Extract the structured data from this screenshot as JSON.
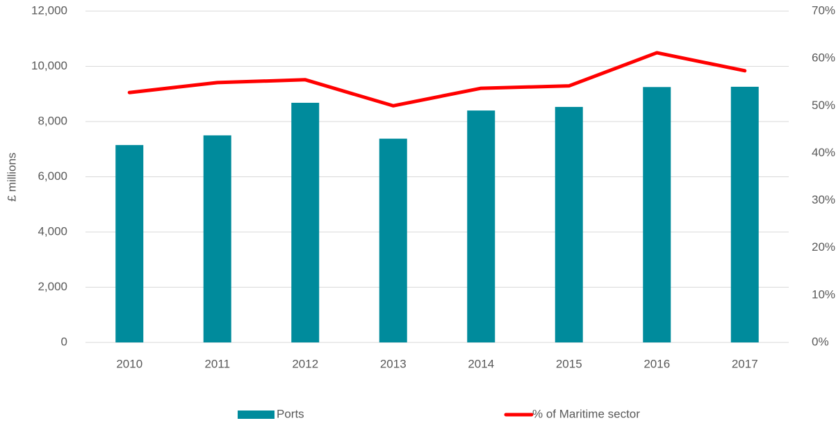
{
  "chart_data": {
    "type": "bar_line",
    "y_label": "£ millions",
    "categories": [
      "2010",
      "2011",
      "2012",
      "2013",
      "2014",
      "2015",
      "2016",
      "2017"
    ],
    "series": [
      {
        "name": "Ports",
        "type": "bar",
        "color": "#008b9c",
        "values": [
          7150,
          7500,
          8680,
          7380,
          8400,
          8530,
          9250,
          9260
        ]
      },
      {
        "name": "% of Maritime sector",
        "type": "line",
        "axis": "y2",
        "color": "#ff0000",
        "values": [
          52.8,
          54.9,
          55.5,
          50.0,
          53.7,
          54.2,
          61.2,
          57.4
        ]
      }
    ],
    "ylim": [
      0,
      12000
    ],
    "yticks": [
      0,
      {
        "value": 2000,
        "label": "2,000"
      },
      {
        "value": 4000,
        "label": "4,000"
      },
      {
        "value": 6000,
        "label": "6,000"
      },
      {
        "value": 8000,
        "label": "8,000"
      },
      {
        "value": 10000,
        "label": "10,000"
      },
      {
        "value": 12000,
        "label": "12,000"
      }
    ],
    "y2lim": [
      0,
      70
    ],
    "y2ticks": [
      {
        "value": 0,
        "label": "0%"
      },
      {
        "value": 10,
        "label": "10%"
      },
      {
        "value": 20,
        "label": "20%"
      },
      {
        "value": 30,
        "label": "30%"
      },
      {
        "value": 40,
        "label": "40%"
      },
      {
        "value": 50,
        "label": "50%"
      },
      {
        "value": 60,
        "label": "60%"
      },
      {
        "value": 70,
        "label": "70%"
      }
    ],
    "grid": true,
    "legend": "bottom"
  }
}
